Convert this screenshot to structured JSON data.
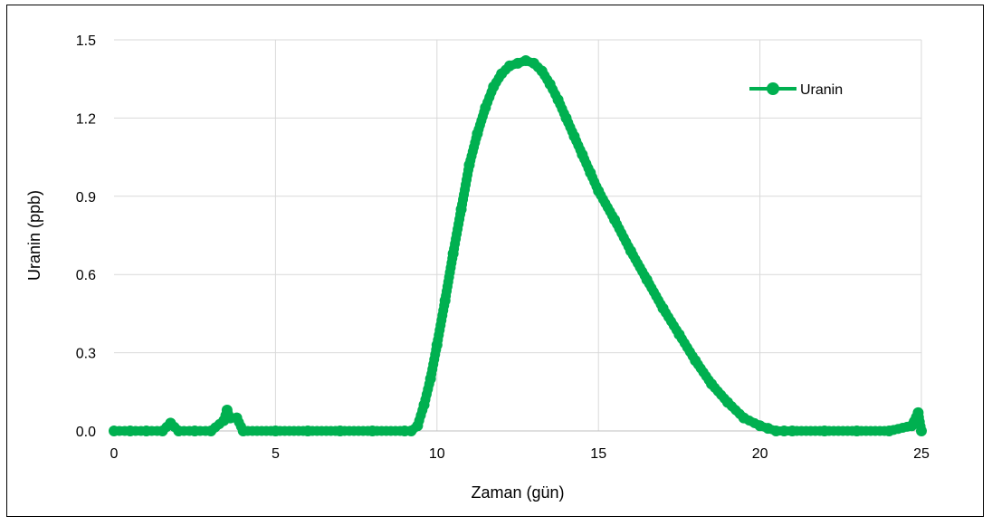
{
  "chart_data": {
    "type": "scatter",
    "title": "",
    "xlabel": "Zaman (gün)",
    "ylabel": "Uranin (ppb)",
    "xlim": [
      0,
      25
    ],
    "ylim": [
      0,
      1.5
    ],
    "x_ticks": [
      0,
      5,
      10,
      15,
      20,
      25
    ],
    "y_ticks": [
      0,
      0.3,
      0.6,
      0.9,
      1.2,
      1.5
    ],
    "x_tick_labels": [
      "0",
      "5",
      "10",
      "15",
      "20",
      "25"
    ],
    "y_tick_labels": [
      "0.0",
      "0.3",
      "0.6",
      "0.9",
      "1.2",
      "1.5"
    ],
    "grid": true,
    "legend": "top-right",
    "series": [
      {
        "name": "Uranin",
        "color": "#00b050",
        "x": [
          0,
          0.5,
          1,
          1.5,
          1.75,
          2,
          2.5,
          3,
          3.4,
          3.5,
          3.6,
          3.8,
          4,
          5,
          6,
          7,
          8,
          9,
          9.2,
          9.4,
          9.6,
          9.8,
          10,
          10.25,
          10.5,
          10.75,
          11,
          11.25,
          11.5,
          11.75,
          12,
          12.25,
          12.5,
          12.75,
          13,
          13.25,
          13.5,
          13.75,
          14,
          14.25,
          14.5,
          14.75,
          15,
          15.5,
          16,
          16.5,
          17,
          17.5,
          18,
          18.5,
          19,
          19.5,
          20,
          20.25,
          20.5,
          20.75,
          21,
          22,
          23,
          24,
          24.7,
          24.9,
          25
        ],
        "y": [
          0,
          0,
          0,
          0,
          0.03,
          0,
          0,
          0,
          0.04,
          0.08,
          0.05,
          0.05,
          0,
          0,
          0,
          0,
          0,
          0,
          0,
          0.02,
          0.1,
          0.2,
          0.33,
          0.5,
          0.68,
          0.85,
          1.02,
          1.14,
          1.24,
          1.32,
          1.37,
          1.4,
          1.41,
          1.42,
          1.41,
          1.38,
          1.33,
          1.27,
          1.2,
          1.13,
          1.06,
          0.99,
          0.92,
          0.81,
          0.69,
          0.58,
          0.47,
          0.37,
          0.27,
          0.18,
          0.11,
          0.05,
          0.02,
          0.01,
          0,
          0,
          0,
          0,
          0,
          0,
          0.02,
          0.07,
          0
        ]
      }
    ]
  }
}
